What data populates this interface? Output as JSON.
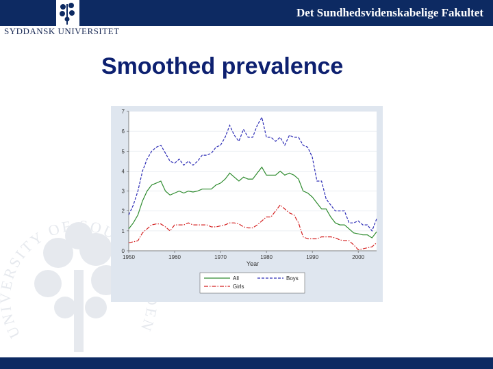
{
  "header": {
    "faculty": "Det Sundhedsvidenskabelige Fakultet",
    "university": "SYDDANSK UNIVERSITET"
  },
  "slide": {
    "title": "Smoothed prevalence"
  },
  "watermark": {
    "text": "UNIVERSITY OF SOUTHERN DENMARK"
  },
  "colors": {
    "brand_navy": "#0d2a62",
    "title_blue": "#0d2070",
    "series_all": "#2e8b2e",
    "series_boys": "#2b2bb5",
    "series_girls": "#d42020"
  },
  "chart_data": {
    "type": "line",
    "title": "",
    "xlabel": "Year",
    "ylabel": "",
    "xlim": [
      1950,
      2004
    ],
    "ylim": [
      0,
      7
    ],
    "xticks": [
      1950,
      1960,
      1970,
      1980,
      1990,
      2000
    ],
    "yticks": [
      0,
      1,
      2,
      3,
      4,
      5,
      6,
      7
    ],
    "grid": true,
    "legend_position": "bottom",
    "x": [
      1950,
      1951,
      1952,
      1953,
      1954,
      1955,
      1956,
      1957,
      1958,
      1959,
      1960,
      1961,
      1962,
      1963,
      1964,
      1965,
      1966,
      1967,
      1968,
      1969,
      1970,
      1971,
      1972,
      1973,
      1974,
      1975,
      1976,
      1977,
      1978,
      1979,
      1980,
      1981,
      1982,
      1983,
      1984,
      1985,
      1986,
      1987,
      1988,
      1989,
      1990,
      1991,
      1992,
      1993,
      1994,
      1995,
      1996,
      1997,
      1998,
      1999,
      2000,
      2001,
      2002,
      2003,
      2004
    ],
    "series": [
      {
        "name": "All",
        "style": "solid",
        "values": [
          1.1,
          1.4,
          1.8,
          2.5,
          3.0,
          3.3,
          3.4,
          3.5,
          3.0,
          2.8,
          2.9,
          3.0,
          2.9,
          3.0,
          2.95,
          3.0,
          3.1,
          3.1,
          3.1,
          3.3,
          3.4,
          3.6,
          3.9,
          3.7,
          3.5,
          3.7,
          3.6,
          3.6,
          3.9,
          4.2,
          3.8,
          3.8,
          3.8,
          4.0,
          3.8,
          3.9,
          3.8,
          3.6,
          3.0,
          2.9,
          2.7,
          2.4,
          2.1,
          2.1,
          1.7,
          1.4,
          1.3,
          1.3,
          1.1,
          0.9,
          0.85,
          0.8,
          0.8,
          0.65,
          0.95
        ]
      },
      {
        "name": "Boys",
        "style": "dashed",
        "values": [
          1.8,
          2.3,
          3.0,
          4.0,
          4.6,
          5.0,
          5.2,
          5.3,
          4.9,
          4.5,
          4.4,
          4.6,
          4.3,
          4.5,
          4.3,
          4.5,
          4.8,
          4.8,
          4.9,
          5.2,
          5.3,
          5.7,
          6.3,
          5.8,
          5.5,
          6.1,
          5.7,
          5.7,
          6.3,
          6.7,
          5.7,
          5.7,
          5.5,
          5.7,
          5.3,
          5.8,
          5.7,
          5.7,
          5.3,
          5.2,
          4.7,
          3.5,
          3.5,
          2.6,
          2.3,
          2.0,
          2.0,
          2.0,
          1.4,
          1.4,
          1.5,
          1.3,
          1.3,
          1.0,
          1.6
        ]
      },
      {
        "name": "Girls",
        "style": "dash-dot",
        "values": [
          0.4,
          0.45,
          0.5,
          0.9,
          1.1,
          1.3,
          1.35,
          1.35,
          1.2,
          1.0,
          1.3,
          1.3,
          1.3,
          1.4,
          1.3,
          1.3,
          1.3,
          1.3,
          1.2,
          1.2,
          1.25,
          1.3,
          1.4,
          1.4,
          1.35,
          1.2,
          1.15,
          1.15,
          1.3,
          1.5,
          1.7,
          1.7,
          2.0,
          2.3,
          2.1,
          1.9,
          1.8,
          1.4,
          0.7,
          0.6,
          0.6,
          0.6,
          0.7,
          0.7,
          0.7,
          0.65,
          0.55,
          0.5,
          0.5,
          0.3,
          0.05,
          0.1,
          0.15,
          0.2,
          0.4
        ]
      }
    ]
  }
}
